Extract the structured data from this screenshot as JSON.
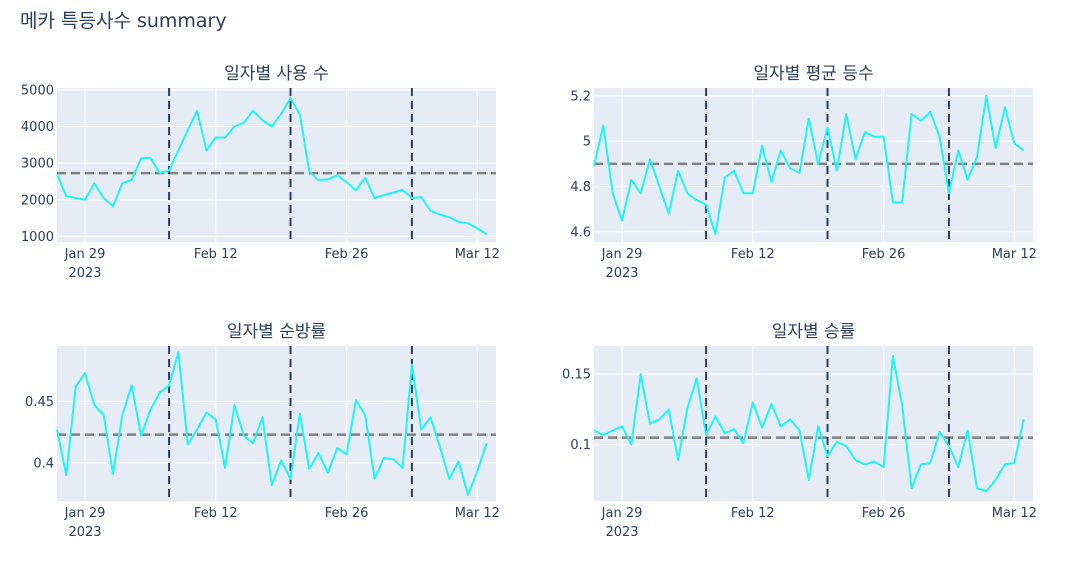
{
  "page": {
    "title": "메카 특등사수 summary"
  },
  "colors": {
    "line": "#1ff5f5",
    "plot_bg": "#e5ecf6",
    "grid": "#ffffff",
    "hline": "#808080",
    "vline": "#2a3f5f",
    "text": "#2a3f5f"
  },
  "x_ticks": {
    "dates": [
      "2023-01-29",
      "2023-02-12",
      "2023-02-26",
      "2023-03-12"
    ],
    "labels": [
      "Jan 29",
      "Feb 12",
      "Feb 26",
      "Mar 12"
    ],
    "year_label": "2023"
  },
  "chart_data": [
    {
      "type": "line",
      "title": "일자별 사용 수",
      "x_start": "2023-01-26",
      "x_range": [
        "2023-01-26",
        "2023-03-14"
      ],
      "ylim": [
        850,
        5050
      ],
      "y_ticks": [
        1000,
        2000,
        3000,
        4000,
        5000
      ],
      "y_tick_labels": [
        "1000",
        "2000",
        "3000",
        "4000",
        "5000"
      ],
      "reference_line": 2730,
      "event_dates": [
        "2023-02-07",
        "2023-02-20",
        "2023-03-05"
      ],
      "values": [
        2700,
        2100,
        2050,
        2000,
        2450,
        2050,
        1820,
        2450,
        2550,
        3130,
        3150,
        2730,
        2800,
        3350,
        3900,
        4430,
        3350,
        3700,
        3700,
        4000,
        4100,
        4430,
        4170,
        4000,
        4350,
        4780,
        4320,
        2780,
        2530,
        2560,
        2670,
        2480,
        2260,
        2600,
        2050,
        2130,
        2200,
        2270,
        2050,
        2070,
        1700,
        1600,
        1520,
        1400,
        1360,
        1220,
        1060
      ]
    },
    {
      "type": "line",
      "title": "일자별 평균 등수",
      "x_start": "2023-01-26",
      "x_range": [
        "2023-01-26",
        "2023-03-14"
      ],
      "ylim": [
        4.555,
        5.235
      ],
      "y_ticks": [
        4.6,
        4.8,
        5.0,
        5.2
      ],
      "y_tick_labels": [
        "4.6",
        "4.8",
        "5",
        "5.2"
      ],
      "reference_line": 4.9,
      "event_dates": [
        "2023-02-07",
        "2023-02-20",
        "2023-03-05"
      ],
      "values": [
        4.89,
        5.07,
        4.77,
        4.65,
        4.83,
        4.77,
        4.92,
        4.8,
        4.68,
        4.87,
        4.77,
        4.74,
        4.72,
        4.59,
        4.84,
        4.87,
        4.77,
        4.77,
        4.98,
        4.82,
        4.96,
        4.88,
        4.86,
        5.1,
        4.9,
        5.06,
        4.87,
        5.12,
        4.92,
        5.04,
        5.02,
        5.02,
        4.73,
        4.73,
        5.12,
        5.09,
        5.13,
        5.02,
        4.77,
        4.96,
        4.83,
        4.93,
        5.2,
        4.97,
        5.15,
        4.99,
        4.96
      ]
    },
    {
      "type": "line",
      "title": "일자별 순방률",
      "x_start": "2023-01-26",
      "x_range": [
        "2023-01-26",
        "2023-03-14"
      ],
      "ylim": [
        0.369,
        0.495
      ],
      "y_ticks": [
        0.4,
        0.45
      ],
      "y_tick_labels": [
        "0.4",
        "0.45"
      ],
      "reference_line": 0.423,
      "event_dates": [
        "2023-02-07",
        "2023-02-20",
        "2023-03-05"
      ],
      "values": [
        0.427,
        0.39,
        0.462,
        0.473,
        0.447,
        0.439,
        0.391,
        0.439,
        0.463,
        0.422,
        0.443,
        0.457,
        0.463,
        0.49,
        0.415,
        0.427,
        0.441,
        0.435,
        0.396,
        0.447,
        0.422,
        0.416,
        0.437,
        0.382,
        0.402,
        0.387,
        0.44,
        0.395,
        0.408,
        0.392,
        0.412,
        0.407,
        0.451,
        0.439,
        0.387,
        0.404,
        0.403,
        0.396,
        0.48,
        0.427,
        0.437,
        0.413,
        0.387,
        0.401,
        0.374,
        0.393,
        0.416
      ]
    },
    {
      "type": "line",
      "title": "일자별 승률",
      "x_start": "2023-01-26",
      "x_range": [
        "2023-01-26",
        "2023-03-14"
      ],
      "ylim": [
        0.06,
        0.17
      ],
      "y_ticks": [
        0.1,
        0.15
      ],
      "y_tick_labels": [
        "0.1",
        "0.15"
      ],
      "reference_line": 0.105,
      "event_dates": [
        "2023-02-07",
        "2023-02-20",
        "2023-03-05"
      ],
      "values": [
        0.11,
        0.107,
        0.11,
        0.113,
        0.1,
        0.15,
        0.115,
        0.118,
        0.125,
        0.089,
        0.126,
        0.147,
        0.107,
        0.12,
        0.108,
        0.111,
        0.101,
        0.13,
        0.112,
        0.129,
        0.113,
        0.118,
        0.11,
        0.075,
        0.113,
        0.092,
        0.102,
        0.099,
        0.089,
        0.086,
        0.088,
        0.084,
        0.163,
        0.128,
        0.069,
        0.086,
        0.087,
        0.109,
        0.099,
        0.084,
        0.11,
        0.069,
        0.067,
        0.075,
        0.086,
        0.087,
        0.118
      ]
    }
  ]
}
